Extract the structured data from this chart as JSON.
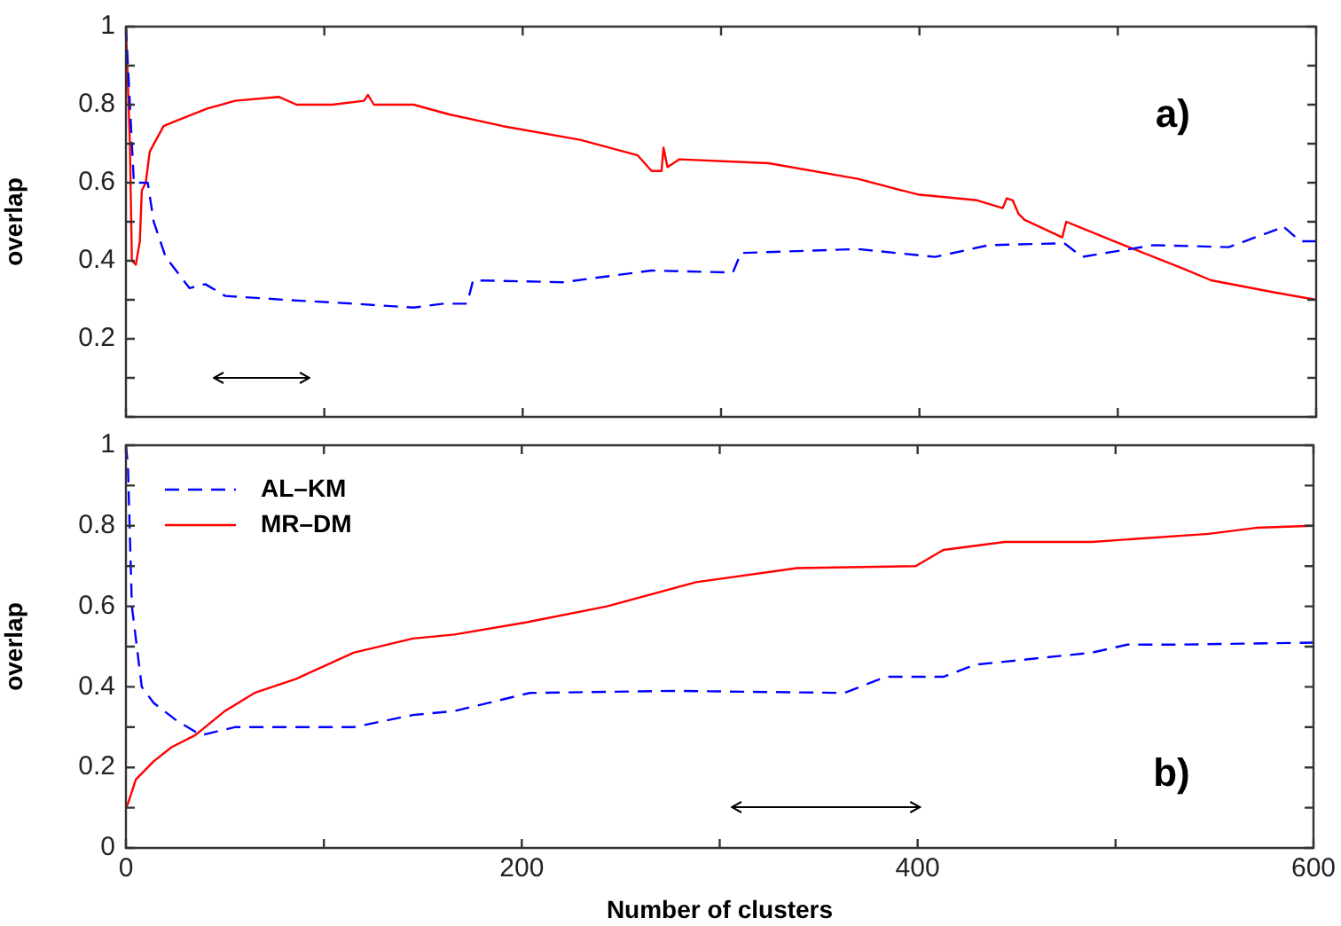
{
  "chart_data": [
    {
      "type": "line",
      "ylabel": "overlap",
      "xlim": [
        0,
        600
      ],
      "ylim": [
        0,
        1
      ],
      "xticks": [
        0,
        {
          "value": 100,
          "label": null
        },
        200,
        {
          "value": 300,
          "label": null
        },
        400,
        {
          "value": 500,
          "label": null
        },
        600
      ],
      "yticks": [
        {
          "value": 0,
          "label": null
        },
        {
          "value": 0.1,
          "label": null
        },
        0.2,
        {
          "value": 0.3,
          "label": null
        },
        0.4,
        {
          "value": 0.5,
          "label": null
        },
        0.6,
        {
          "value": 0.7,
          "label": null
        },
        0.8,
        {
          "value": 0.9,
          "label": null
        },
        1
      ],
      "tick_labels": "y",
      "grid": false,
      "legend": false,
      "marker": "none",
      "annotations": [
        "a)"
      ],
      "series": [
        {
          "color": "#0000ff",
          "line_style": "dashed",
          "x": [
            0,
            2,
            4,
            11,
            14,
            20,
            32,
            40,
            50,
            80,
            115,
            145,
            160,
            172,
            175,
            220,
            265,
            306,
            310,
            369,
            408,
            435,
            473,
            482,
            518,
            556,
            580,
            583,
            592,
            600
          ],
          "values": [
            1,
            0.8,
            0.6,
            0.6,
            0.5,
            0.41,
            0.33,
            0.34,
            0.31,
            0.3,
            0.29,
            0.28,
            0.29,
            0.29,
            0.35,
            0.345,
            0.375,
            0.37,
            0.42,
            0.43,
            0.41,
            0.44,
            0.445,
            0.41,
            0.44,
            0.435,
            0.48,
            0.49,
            0.45,
            0.45
          ]
        },
        {
          "color": "#ff0000",
          "line_style": "solid",
          "x": [
            0,
            2,
            3,
            5,
            7,
            8,
            10,
            12,
            19,
            26,
            41,
            55,
            77,
            86,
            104,
            120,
            122,
            125,
            145,
            163,
            190,
            229,
            258,
            265,
            270,
            271,
            273,
            279,
            324,
            369,
            399,
            429,
            442,
            444,
            447,
            450,
            453,
            472,
            474,
            503,
            533,
            547,
            578,
            600
          ],
          "values": [
            1,
            0.7,
            0.4,
            0.39,
            0.45,
            0.58,
            0.6,
            0.68,
            0.745,
            0.76,
            0.79,
            0.81,
            0.82,
            0.8,
            0.8,
            0.81,
            0.825,
            0.8,
            0.8,
            0.775,
            0.745,
            0.71,
            0.67,
            0.63,
            0.63,
            0.69,
            0.64,
            0.66,
            0.65,
            0.61,
            0.57,
            0.555,
            0.535,
            0.56,
            0.555,
            0.52,
            0.505,
            0.46,
            0.5,
            0.44,
            0.38,
            0.35,
            0.32,
            0.3
          ]
        }
      ]
    },
    {
      "type": "line",
      "xlabel": "Number of clusters",
      "ylabel": "overlap",
      "xlim": [
        0,
        600
      ],
      "ylim": [
        0,
        1
      ],
      "xticks": [
        0,
        {
          "value": 100,
          "label": null
        },
        200,
        {
          "value": 300,
          "label": null
        },
        400,
        {
          "value": 500,
          "label": null
        },
        600
      ],
      "yticks": [
        0,
        {
          "value": 0.1,
          "label": null
        },
        0.2,
        {
          "value": 0.3,
          "label": null
        },
        0.4,
        {
          "value": 0.5,
          "label": null
        },
        0.6,
        {
          "value": 0.7,
          "label": null
        },
        0.8,
        {
          "value": 0.9,
          "label": null
        },
        1
      ],
      "grid": false,
      "legend": "top left",
      "marker": "none",
      "annotations": [
        "b)"
      ],
      "series": [
        {
          "name": "AL–KM",
          "color": "#0000ff",
          "line_style": "dashed",
          "x": [
            0,
            1,
            3,
            8,
            14,
            26,
            38,
            55,
            86,
            115,
            145,
            166,
            204,
            277,
            363,
            384,
            413,
            429,
            488,
            506,
            533,
            600
          ],
          "values": [
            1,
            0.95,
            0.6,
            0.4,
            0.36,
            0.315,
            0.28,
            0.3,
            0.3,
            0.3,
            0.33,
            0.34,
            0.385,
            0.39,
            0.385,
            0.425,
            0.425,
            0.455,
            0.485,
            0.505,
            0.505,
            0.51
          ]
        },
        {
          "name": "MR–DM",
          "color": "#ff0000",
          "line_style": "solid",
          "x": [
            0,
            1,
            5,
            14,
            23,
            35,
            50,
            65,
            86,
            115,
            145,
            166,
            202,
            243,
            288,
            339,
            399,
            413,
            444,
            488,
            547,
            571,
            600
          ],
          "values": [
            0.1,
            0.11,
            0.17,
            0.215,
            0.25,
            0.28,
            0.34,
            0.385,
            0.42,
            0.485,
            0.52,
            0.53,
            0.56,
            0.6,
            0.66,
            0.695,
            0.7,
            0.74,
            0.76,
            0.76,
            0.78,
            0.795,
            0.8
          ]
        }
      ]
    }
  ]
}
